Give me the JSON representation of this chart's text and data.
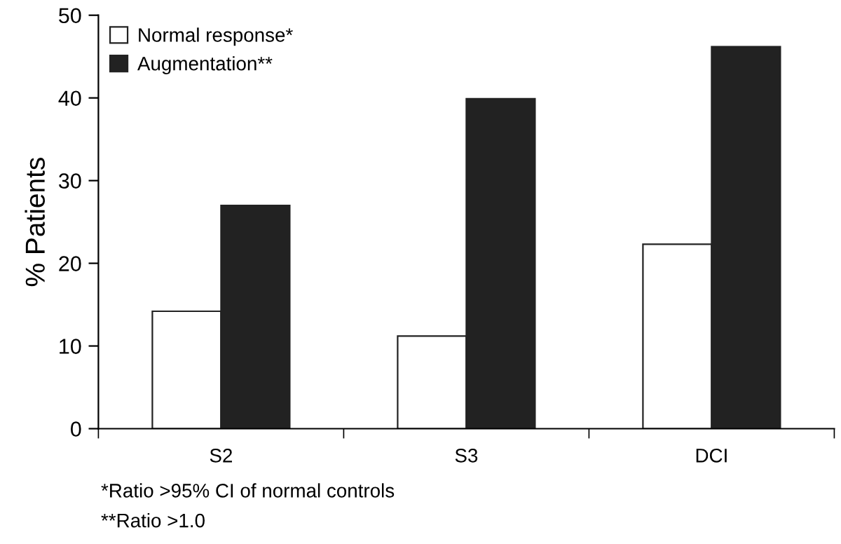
{
  "chart_data": {
    "type": "bar",
    "ylabel": "% Patients",
    "categories": [
      "S2",
      "S3",
      "DCI"
    ],
    "series": [
      {
        "name": "Normal response*",
        "color": "#ffffff",
        "values": [
          14.2,
          11.2,
          22.3
        ]
      },
      {
        "name": "Augmentation**",
        "color": "#222222",
        "values": [
          27.0,
          39.9,
          46.2
        ]
      }
    ],
    "ylim": [
      0,
      50
    ],
    "yticks": [
      0,
      10,
      20,
      30,
      40,
      50
    ],
    "grid": false,
    "legend": "top left",
    "annotations": [
      "*Ratio >95% CI of normal controls",
      "**Ratio >1.0"
    ]
  }
}
